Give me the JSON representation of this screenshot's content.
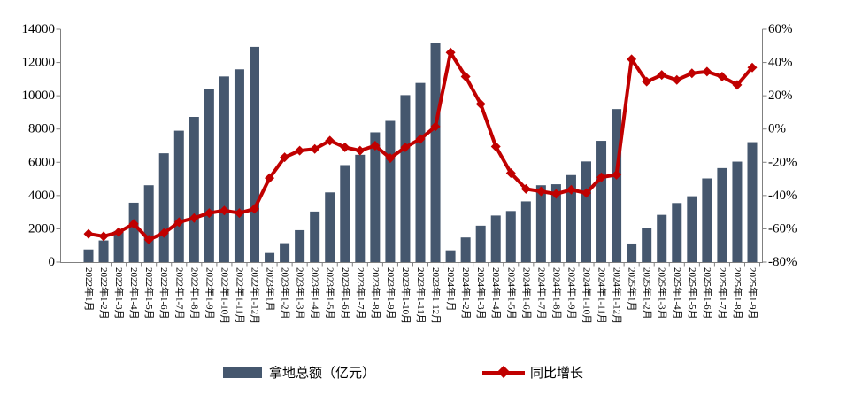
{
  "chart_data": {
    "type": "bar+line",
    "categories": [
      "2022年1月",
      "2022年1-2月",
      "2022年1-3月",
      "2022年1-4月",
      "2022年1-5月",
      "2022年1-6月",
      "2022年1-7月",
      "2022年1-8月",
      "2022年1-9月",
      "2022年1-10月",
      "2022年1-11月",
      "2022年1-12月",
      "2023年1月",
      "2023年1-2月",
      "2023年1-3月",
      "2023年1-4月",
      "2023年1-5月",
      "2023年1-6月",
      "2023年1-7月",
      "2023年1-8月",
      "2023年1-9月",
      "2023年1-10月",
      "2023年1-11月",
      "2023年1-12月",
      "2024年1月",
      "2024年1-2月",
      "2024年1-3月",
      "2024年1-4月",
      "2024年1-5月",
      "2024年1-6月",
      "2024年1-7月",
      "2024年1-8月",
      "2024年1-9月",
      "2024年1-10月",
      "2024年1-11月",
      "2024年1-12月",
      "2025年1月",
      "2025年1-2月",
      "2025年1-3月",
      "2025年1-4月",
      "2025年1-5月",
      "2025年1-6月",
      "2025年1-7月",
      "2025年1-8月",
      "2025年1-9月"
    ],
    "series": [
      {
        "name": "拿地总额（亿元）",
        "type": "bar",
        "axis": "left",
        "color": "#45576E",
        "values": [
          760,
          1300,
          1870,
          3570,
          4620,
          6540,
          7900,
          8730,
          10400,
          11160,
          11590,
          12940,
          550,
          1140,
          1920,
          3040,
          4190,
          5830,
          6450,
          7800,
          8490,
          10040,
          10770,
          13150,
          710,
          1480,
          2190,
          2800,
          3070,
          3650,
          4620,
          4680,
          5230,
          6050,
          7290,
          9200,
          1120,
          2060,
          2840,
          3550,
          3960,
          5030,
          5650,
          6040,
          7210
        ]
      },
      {
        "name": "同比增长",
        "type": "line",
        "axis": "right",
        "color": "#C00000",
        "values": [
          -63,
          -64.5,
          -62,
          -57,
          -66.5,
          -62.5,
          -56,
          -53.5,
          -50.5,
          -49,
          -50.5,
          -48,
          -29.5,
          -17,
          -13,
          -12,
          -7,
          -11,
          -13,
          -10,
          -17.5,
          -11,
          -6,
          1.5,
          46,
          31.5,
          15,
          -10.5,
          -26.5,
          -36,
          -37.5,
          -39,
          -36.5,
          -38.5,
          -29,
          -27.5,
          42,
          28.5,
          32.5,
          29.5,
          33.5,
          34.5,
          31.5,
          26.5,
          37
        ]
      }
    ],
    "left_axis": {
      "min": 0,
      "max": 14000,
      "step": 2000,
      "tick_labels": [
        "0",
        "2000",
        "4000",
        "6000",
        "8000",
        "10000",
        "12000",
        "14000"
      ]
    },
    "right_axis": {
      "min": -80,
      "max": 60,
      "step": 20,
      "tick_labels": [
        "-80%",
        "-60%",
        "-40%",
        "-20%",
        "0%",
        "20%",
        "40%",
        "60%"
      ]
    },
    "grid": "off",
    "legend_position": "bottom",
    "axis_line_color": "#808080"
  },
  "legend": {
    "bar_label": "拿地总额（亿元）",
    "line_label": "同比增长"
  }
}
